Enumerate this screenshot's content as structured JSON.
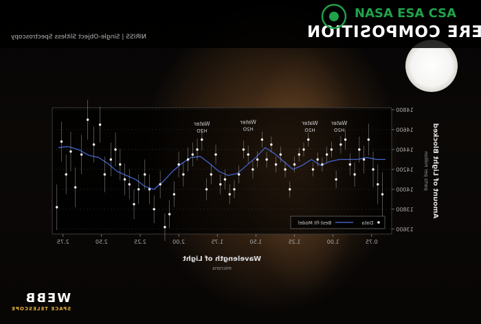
{
  "header": {
    "title": "ATMOSPHERE COMPOSITION",
    "subtitle": "NIRISS | Single-Object Slitless Spectroscopy",
    "badge_text": "NASA ESA CSA"
  },
  "branding": {
    "name": "WEBB",
    "tagline": "SPACE TELESCOPE"
  },
  "colors": {
    "model_line": "#3f5fc0",
    "data_point": "#ffffff",
    "error_bar": "#9a9a9a",
    "logo_green": "#1fa24a",
    "logo_gold": "#e8b43a"
  },
  "chart_data": {
    "type": "scatter",
    "mirrored": true,
    "title": "ATMOSPHERE COMPOSITION",
    "xlabel": "Wavelength of Light",
    "xunit": "microns",
    "ylabel": "Amount of Light Blocked",
    "yunit": "parts per million",
    "xlim": [
      0.62,
      2.82
    ],
    "ylim": [
      13550,
      14820
    ],
    "xticks": [
      0.75,
      1.0,
      1.25,
      1.5,
      1.75,
      2.0,
      2.25,
      2.5,
      2.75
    ],
    "xtick_labels": [
      "0.75",
      "1.00",
      "1.25",
      "1.50",
      "1.75",
      "2.00",
      "2.25",
      "2.50",
      "2.75"
    ],
    "yticks": [
      13600,
      13800,
      14000,
      14200,
      14400,
      14600,
      14800
    ],
    "ytick_labels": [
      "13600",
      "13800",
      "14000",
      "14200",
      "14400",
      "14600",
      "14800"
    ],
    "legend": {
      "placement": "bottom-right",
      "entries": [
        "Data",
        "Best-fit Model"
      ]
    },
    "annotations": [
      {
        "label": "Water",
        "sub": "H2O",
        "x": 1.55,
        "y": 14590
      },
      {
        "label": "Water",
        "sub": "H2O",
        "x": 1.15,
        "y": 14580
      },
      {
        "label": "Water",
        "sub": "H2O",
        "x": 0.96,
        "y": 14580
      },
      {
        "label": "Water",
        "sub": "H2O",
        "x": 1.85,
        "y": 14570
      }
    ],
    "series": [
      {
        "name": "Data",
        "x": [
          2.79,
          2.76,
          2.73,
          2.7,
          2.67,
          2.63,
          2.59,
          2.55,
          2.51,
          2.48,
          2.44,
          2.41,
          2.38,
          2.35,
          2.32,
          2.29,
          2.26,
          2.22,
          2.19,
          2.16,
          2.12,
          2.09,
          2.06,
          2.03,
          2.0,
          1.97,
          1.94,
          1.91,
          1.88,
          1.85,
          1.82,
          1.79,
          1.76,
          1.73,
          1.7,
          1.67,
          1.64,
          1.61,
          1.58,
          1.55,
          1.52,
          1.49,
          1.46,
          1.43,
          1.4,
          1.37,
          1.34,
          1.31,
          1.28,
          1.25,
          1.22,
          1.19,
          1.16,
          1.13,
          1.1,
          1.07,
          1.04,
          1.01,
          0.98,
          0.95,
          0.92,
          0.89,
          0.86,
          0.83,
          0.8,
          0.77,
          0.74,
          0.71,
          0.68
        ],
        "y": [
          13820,
          14480,
          14150,
          14380,
          14020,
          14350,
          14700,
          14450,
          14650,
          14150,
          14300,
          14400,
          14250,
          14100,
          14050,
          13850,
          14000,
          14150,
          14000,
          13800,
          14050,
          13620,
          13750,
          13950,
          14250,
          14150,
          14300,
          14350,
          14400,
          14500,
          14000,
          14150,
          14350,
          14050,
          14100,
          13950,
          14000,
          14150,
          14400,
          14350,
          14200,
          14300,
          14500,
          14300,
          14450,
          14250,
          14350,
          14200,
          14000,
          14250,
          14350,
          14400,
          14500,
          14200,
          14300,
          14250,
          14350,
          14400,
          14100,
          14450,
          14500,
          14250,
          14150,
          14400,
          14300,
          14500,
          14200,
          14050,
          13950
        ],
        "err": [
          230,
          200,
          200,
          200,
          200,
          200,
          200,
          180,
          180,
          180,
          170,
          170,
          160,
          160,
          150,
          150,
          150,
          150,
          150,
          140,
          140,
          140,
          140,
          130,
          130,
          120,
          120,
          120,
          110,
          110,
          110,
          100,
          100,
          100,
          100,
          100,
          90,
          90,
          90,
          90,
          90,
          80,
          80,
          80,
          80,
          80,
          80,
          80,
          80,
          80,
          70,
          70,
          70,
          70,
          70,
          70,
          80,
          80,
          90,
          90,
          100,
          110,
          120,
          130,
          140,
          160,
          180,
          200,
          220
        ]
      },
      {
        "name": "Best-fit Model",
        "x": [
          2.78,
          2.72,
          2.65,
          2.58,
          2.52,
          2.46,
          2.4,
          2.34,
          2.28,
          2.22,
          2.16,
          2.1,
          2.04,
          1.98,
          1.92,
          1.86,
          1.8,
          1.74,
          1.68,
          1.62,
          1.56,
          1.5,
          1.44,
          1.38,
          1.32,
          1.26,
          1.2,
          1.14,
          1.08,
          1.02,
          0.96,
          0.9,
          0.84,
          0.78,
          0.72,
          0.66
        ],
        "y": [
          14420,
          14430,
          14400,
          14340,
          14320,
          14260,
          14180,
          14140,
          14100,
          14030,
          14000,
          14080,
          14180,
          14260,
          14320,
          14330,
          14260,
          14180,
          14140,
          14160,
          14240,
          14320,
          14420,
          14360,
          14280,
          14200,
          14240,
          14300,
          14240,
          14280,
          14300,
          14300,
          14300,
          14320,
          14300,
          14300
        ]
      }
    ]
  }
}
